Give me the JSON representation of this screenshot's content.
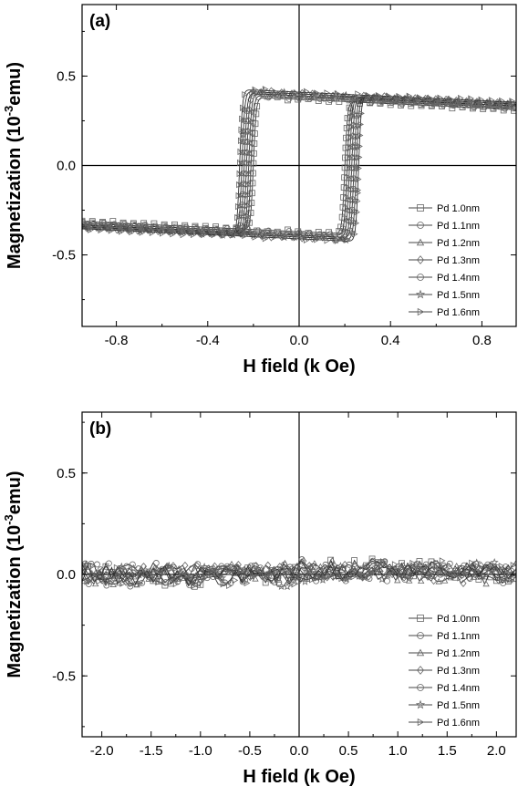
{
  "chart_data": [
    {
      "panel": "(a)",
      "type": "scatter",
      "xlabel": "H field (k Oe)",
      "ylabel_main": "Magnetization (10",
      "ylabel_sup": "-3",
      "ylabel_unit": "emu)",
      "xlim": [
        -0.95,
        0.95
      ],
      "ylim": [
        -0.9,
        0.9
      ],
      "xticks": [
        -0.8,
        -0.4,
        0.0,
        0.4,
        0.8
      ],
      "xtick_labels": [
        "-0.8",
        "-0.4",
        "0.0",
        "0.4",
        "0.8"
      ],
      "yticks": [
        -0.5,
        0.0,
        0.5
      ],
      "ytick_labels": [
        "-0.5",
        "0.0",
        "0.5"
      ],
      "legend_position": "lower-right",
      "series": [
        {
          "name": "Pd 1.0nm",
          "marker": "square",
          "coercivity": 0.2,
          "saturation": 0.37
        },
        {
          "name": "Pd 1.1nm",
          "marker": "circle",
          "coercivity": 0.21,
          "saturation": 0.38
        },
        {
          "name": "Pd 1.2nm",
          "marker": "triangle-up",
          "coercivity": 0.22,
          "saturation": 0.39
        },
        {
          "name": "Pd 1.3nm",
          "marker": "diamond",
          "coercivity": 0.23,
          "saturation": 0.4
        },
        {
          "name": "Pd 1.4nm",
          "marker": "circle",
          "coercivity": 0.24,
          "saturation": 0.39
        },
        {
          "name": "Pd 1.5nm",
          "marker": "star",
          "coercivity": 0.25,
          "saturation": 0.4
        },
        {
          "name": "Pd 1.6nm",
          "marker": "triangle-right",
          "coercivity": 0.26,
          "saturation": 0.41
        }
      ]
    },
    {
      "panel": "(b)",
      "type": "scatter",
      "xlabel": "H field (k Oe)",
      "ylabel_main": "Magnetization (10",
      "ylabel_sup": "-3",
      "ylabel_unit": "emu)",
      "xlim": [
        -2.2,
        2.2
      ],
      "ylim": [
        -0.8,
        0.8
      ],
      "xticks": [
        -2.0,
        -1.5,
        -1.0,
        -0.5,
        0.0,
        0.5,
        1.0,
        1.5,
        2.0
      ],
      "xtick_labels": [
        "-2.0",
        "-1.5",
        "-1.0",
        "-0.5",
        "0.0",
        "0.5",
        "1.0",
        "1.5",
        "2.0"
      ],
      "yticks": [
        -0.5,
        0.0,
        0.5
      ],
      "ytick_labels": [
        "-0.5",
        "0.0",
        "0.5"
      ],
      "legend_position": "lower-right",
      "series": [
        {
          "name": "Pd 1.0nm",
          "marker": "square"
        },
        {
          "name": "Pd 1.1nm",
          "marker": "circle"
        },
        {
          "name": "Pd 1.2nm",
          "marker": "triangle-up"
        },
        {
          "name": "Pd 1.3nm",
          "marker": "diamond"
        },
        {
          "name": "Pd 1.4nm",
          "marker": "circle"
        },
        {
          "name": "Pd 1.5nm",
          "marker": "star"
        },
        {
          "name": "Pd 1.6nm",
          "marker": "triangle-right"
        }
      ]
    }
  ]
}
